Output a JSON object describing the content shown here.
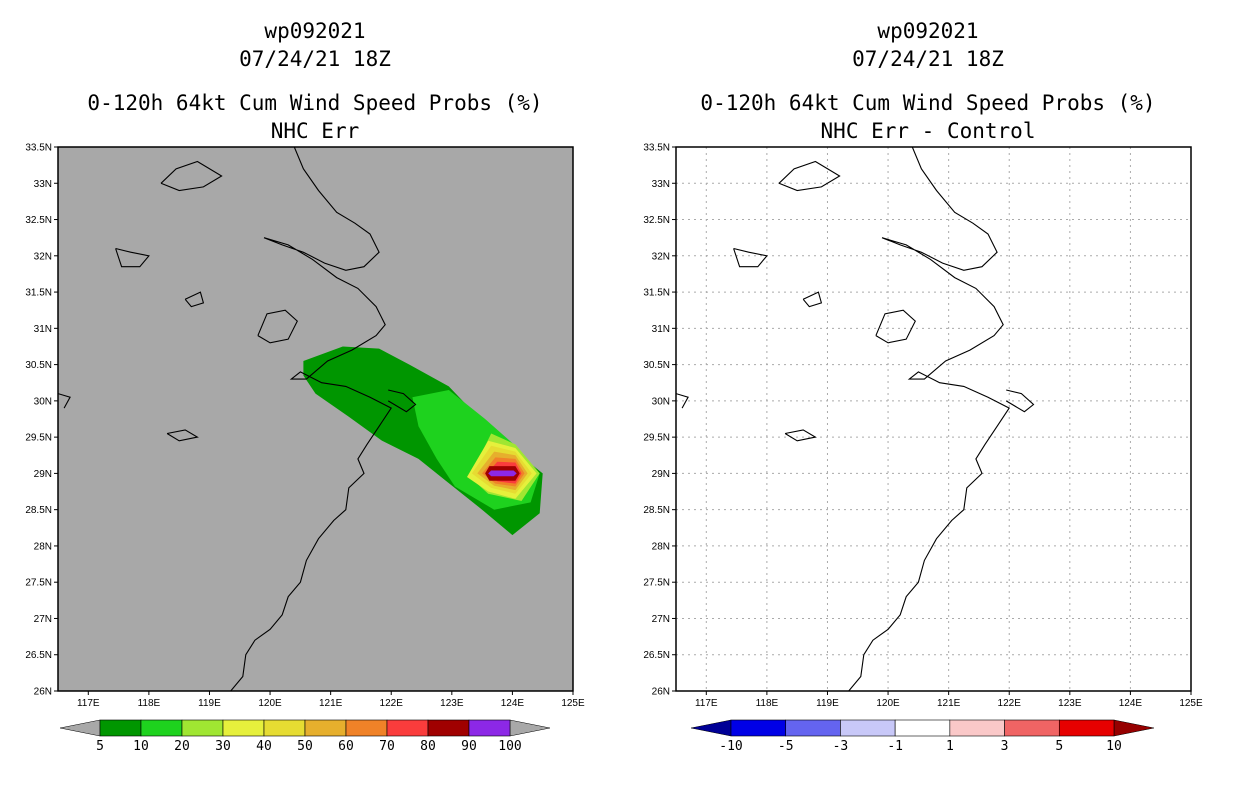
{
  "chart_data": [
    {
      "type": "heatmap",
      "title_lines": [
        "wp092021",
        "07/24/21 18Z",
        "0-120h 64kt Cum Wind Speed Probs (%)",
        "NHC Err"
      ],
      "x_ticks": [
        "117E",
        "118E",
        "119E",
        "120E",
        "121E",
        "122E",
        "123E",
        "124E",
        "125E"
      ],
      "y_ticks": [
        "26N",
        "26.5N",
        "27N",
        "27.5N",
        "28N",
        "28.5N",
        "29N",
        "29.5N",
        "30N",
        "30.5N",
        "31N",
        "31.5N",
        "32N",
        "32.5N",
        "33N",
        "33.5N"
      ],
      "xlim": [
        116.5,
        125
      ],
      "ylim": [
        26,
        33.5
      ],
      "grid": false,
      "background_color": "#a8a8a8",
      "colorbar": {
        "labels": [
          "5",
          "10",
          "20",
          "30",
          "40",
          "50",
          "60",
          "70",
          "80",
          "90",
          "100"
        ],
        "colors": [
          "#009600",
          "#1ed21e",
          "#a0e632",
          "#e6f03c",
          "#e6dc32",
          "#e6af2d",
          "#f08228",
          "#fa3c3c",
          "#a00000",
          "#8c28e6"
        ],
        "end_color": "#a8a8a8"
      },
      "contours": [
        {
          "level": 5,
          "color": "#009600",
          "points": [
            [
              120.55,
              30.55
            ],
            [
              121.2,
              30.75
            ],
            [
              121.8,
              30.72
            ],
            [
              122.3,
              30.5
            ],
            [
              122.95,
              30.2
            ],
            [
              123.5,
              29.72
            ],
            [
              124.05,
              29.3
            ],
            [
              124.5,
              29.0
            ],
            [
              124.45,
              28.45
            ],
            [
              124.0,
              28.15
            ],
            [
              123.5,
              28.5
            ],
            [
              122.9,
              28.9
            ],
            [
              122.45,
              29.2
            ],
            [
              121.85,
              29.45
            ],
            [
              121.3,
              29.78
            ],
            [
              120.75,
              30.1
            ],
            [
              120.55,
              30.35
            ]
          ]
        },
        {
          "level": 10,
          "color": "#1ed21e",
          "points": [
            [
              122.35,
              30.05
            ],
            [
              122.95,
              30.15
            ],
            [
              123.55,
              29.75
            ],
            [
              124.05,
              29.38
            ],
            [
              124.45,
              29.0
            ],
            [
              124.3,
              28.6
            ],
            [
              123.7,
              28.5
            ],
            [
              123.05,
              28.82
            ],
            [
              122.75,
              29.2
            ],
            [
              122.45,
              29.65
            ]
          ]
        },
        {
          "level": 20,
          "color": "#a0e632",
          "points": [
            [
              123.65,
              29.55
            ],
            [
              124.05,
              29.4
            ],
            [
              124.45,
              29.0
            ],
            [
              124.15,
              28.62
            ],
            [
              123.6,
              28.72
            ],
            [
              123.3,
              28.95
            ]
          ]
        },
        {
          "level": 30,
          "color": "#e6f03c",
          "points": [
            [
              123.6,
              29.45
            ],
            [
              124.05,
              29.35
            ],
            [
              124.4,
              29.0
            ],
            [
              124.05,
              28.65
            ],
            [
              123.6,
              28.75
            ],
            [
              123.25,
              28.95
            ]
          ]
        },
        {
          "level": 40,
          "color": "#e6dc32",
          "points": [
            [
              123.65,
              29.38
            ],
            [
              124.05,
              29.3
            ],
            [
              124.32,
              29.0
            ],
            [
              124.05,
              28.72
            ],
            [
              123.65,
              28.8
            ],
            [
              123.33,
              29.0
            ]
          ]
        },
        {
          "level": 50,
          "color": "#e6af2d",
          "points": [
            [
              123.7,
              29.3
            ],
            [
              124.05,
              29.25
            ],
            [
              124.25,
              29.0
            ],
            [
              124.05,
              28.77
            ],
            [
              123.7,
              28.83
            ],
            [
              123.42,
              29.0
            ]
          ]
        },
        {
          "level": 60,
          "color": "#f08228",
          "points": [
            [
              123.72,
              29.22
            ],
            [
              124.05,
              29.2
            ],
            [
              124.2,
              29.0
            ],
            [
              124.05,
              28.82
            ],
            [
              123.72,
              28.86
            ],
            [
              123.5,
              29.0
            ]
          ]
        },
        {
          "level": 70,
          "color": "#fa3c3c",
          "points": [
            [
              123.75,
              29.16
            ],
            [
              124.05,
              29.15
            ],
            [
              124.15,
              29.0
            ],
            [
              124.05,
              28.86
            ],
            [
              123.75,
              28.89
            ],
            [
              123.58,
              29.0
            ]
          ]
        },
        {
          "level": 80,
          "color": "#a00000",
          "points": [
            [
              123.62,
              29.1
            ],
            [
              124.05,
              29.1
            ],
            [
              124.12,
              29.0
            ],
            [
              124.05,
              28.9
            ],
            [
              123.62,
              28.9
            ],
            [
              123.55,
              29.0
            ]
          ]
        },
        {
          "level": 90,
          "color": "#8c28e6",
          "points": [
            [
              123.65,
              29.04
            ],
            [
              124.02,
              29.04
            ],
            [
              124.07,
              29.0
            ],
            [
              124.02,
              28.96
            ],
            [
              123.65,
              28.96
            ],
            [
              123.6,
              29.0
            ]
          ]
        }
      ]
    },
    {
      "type": "heatmap",
      "title_lines": [
        "wp092021",
        "07/24/21 18Z",
        "0-120h 64kt Cum Wind Speed Probs (%)",
        "NHC Err - Control"
      ],
      "x_ticks": [
        "117E",
        "118E",
        "119E",
        "120E",
        "121E",
        "122E",
        "123E",
        "124E",
        "125E"
      ],
      "y_ticks": [
        "26N",
        "26.5N",
        "27N",
        "27.5N",
        "28N",
        "28.5N",
        "29N",
        "29.5N",
        "30N",
        "30.5N",
        "31N",
        "31.5N",
        "32N",
        "32.5N",
        "33N",
        "33.5N"
      ],
      "xlim": [
        116.5,
        125
      ],
      "ylim": [
        26,
        33.5
      ],
      "grid": true,
      "background_color": "#ffffff",
      "colorbar": {
        "labels": [
          "-10",
          "-5",
          "-3",
          "-1",
          "1",
          "3",
          "5",
          "10"
        ],
        "colors": [
          "#0000e6",
          "#6464f0",
          "#c8c8f8",
          "#ffffff",
          "#fac8c8",
          "#f06464",
          "#e60000"
        ],
        "start_color": "#000096",
        "end_color": "#960000"
      },
      "contours": []
    }
  ]
}
